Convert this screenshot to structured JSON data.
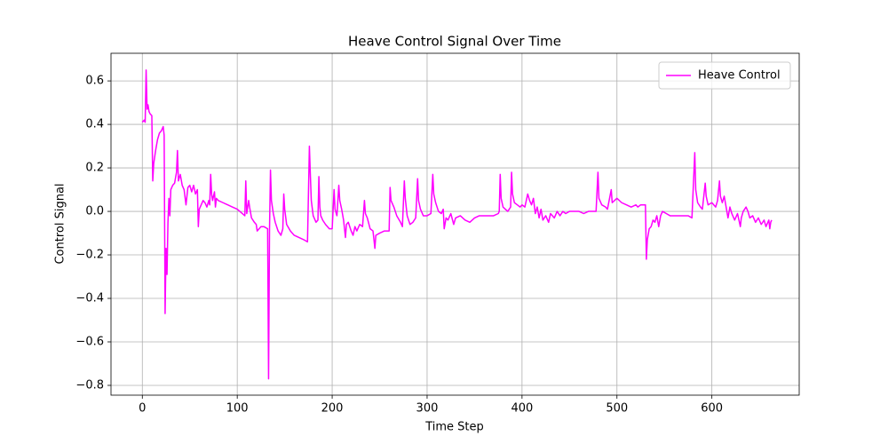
{
  "chart_data": {
    "type": "line",
    "title": "Heave Control Signal Over Time",
    "x_label": "Time Step",
    "y_label": "Control Signal",
    "x": [
      0,
      2,
      3,
      4,
      5,
      6,
      7,
      8,
      10,
      11,
      12,
      14,
      16,
      18,
      20,
      22,
      23,
      24,
      25,
      26,
      27,
      28,
      29,
      30,
      32,
      34,
      36,
      37,
      38,
      40,
      42,
      44,
      46,
      48,
      50,
      52,
      54,
      56,
      58,
      59,
      60,
      62,
      64,
      66,
      68,
      70,
      71,
      72,
      73,
      74,
      76,
      77,
      78,
      80,
      85,
      90,
      95,
      100,
      108,
      109,
      110,
      112,
      113,
      115,
      118,
      120,
      121,
      123,
      125,
      128,
      132,
      133,
      134,
      135,
      136,
      138,
      140,
      143,
      146,
      148,
      149,
      150,
      152,
      156,
      160,
      165,
      170,
      174,
      176,
      177,
      178,
      180,
      183,
      185,
      186,
      187,
      188,
      190,
      193,
      197,
      200,
      202,
      203,
      205,
      207,
      208,
      210,
      212,
      214,
      215,
      217,
      220,
      222,
      224,
      226,
      229,
      232,
      234,
      235,
      237,
      240,
      243,
      245,
      246,
      250,
      255,
      260,
      261,
      262,
      265,
      268,
      272,
      274,
      276,
      277,
      279,
      282,
      285,
      288,
      290,
      291,
      293,
      296,
      300,
      304,
      306,
      307,
      309,
      312,
      315,
      317,
      318,
      320,
      322,
      325,
      328,
      330,
      335,
      340,
      345,
      350,
      355,
      360,
      365,
      370,
      375,
      376,
      377,
      378,
      380,
      385,
      388,
      389,
      390,
      392,
      395,
      398,
      400,
      403,
      406,
      408,
      410,
      412,
      414,
      416,
      418,
      420,
      422,
      425,
      428,
      430,
      434,
      437,
      440,
      443,
      446,
      450,
      455,
      460,
      465,
      470,
      474,
      478,
      480,
      481,
      484,
      488,
      490,
      494,
      495,
      500,
      505,
      510,
      515,
      520,
      522,
      525,
      530,
      531,
      532,
      534,
      536,
      538,
      540,
      542,
      544,
      546,
      548,
      552,
      556,
      560,
      565,
      570,
      575,
      579,
      582,
      583,
      585,
      588,
      590,
      593,
      594,
      596,
      600,
      604,
      606,
      608,
      609,
      611,
      613,
      615,
      617,
      619,
      621,
      624,
      627,
      630,
      631,
      633,
      636,
      638,
      640,
      643,
      646,
      649,
      652,
      655,
      657,
      660,
      661,
      662,
      663
    ],
    "series": [
      {
        "name": "Heave Control",
        "color": "#ff00ff",
        "values": [
          0.41,
          0.42,
          0.41,
          0.65,
          0.47,
          0.49,
          0.46,
          0.45,
          0.44,
          0.14,
          0.22,
          0.28,
          0.33,
          0.36,
          0.37,
          0.39,
          0.35,
          -0.47,
          -0.17,
          -0.29,
          -0.05,
          0.06,
          -0.02,
          0.1,
          0.12,
          0.13,
          0.18,
          0.28,
          0.14,
          0.17,
          0.12,
          0.1,
          0.03,
          0.11,
          0.12,
          0.09,
          0.12,
          0.08,
          0.1,
          -0.07,
          0.01,
          0.03,
          0.05,
          0.04,
          0.02,
          0.05,
          0.03,
          0.17,
          0.08,
          0.05,
          0.09,
          0.02,
          0.06,
          0.05,
          0.04,
          0.03,
          0.02,
          0.01,
          -0.02,
          0.14,
          -0.01,
          0.05,
          0.02,
          -0.03,
          -0.05,
          -0.06,
          -0.09,
          -0.08,
          -0.07,
          -0.07,
          -0.08,
          -0.77,
          -0.08,
          0.19,
          0.05,
          -0.01,
          -0.05,
          -0.09,
          -0.11,
          -0.08,
          0.08,
          0.01,
          -0.06,
          -0.09,
          -0.11,
          -0.12,
          -0.13,
          -0.14,
          0.3,
          0.17,
          0.05,
          -0.02,
          -0.05,
          -0.04,
          0.16,
          0.02,
          -0.02,
          -0.04,
          -0.06,
          -0.08,
          -0.08,
          0.1,
          0.01,
          -0.02,
          0.12,
          0.05,
          0.01,
          -0.04,
          -0.12,
          -0.06,
          -0.05,
          -0.09,
          -0.11,
          -0.07,
          -0.09,
          -0.06,
          -0.07,
          0.05,
          -0.01,
          -0.03,
          -0.08,
          -0.09,
          -0.17,
          -0.11,
          -0.1,
          -0.09,
          -0.09,
          0.11,
          0.05,
          0.02,
          -0.02,
          -0.05,
          -0.07,
          0.14,
          0.06,
          -0.02,
          -0.06,
          -0.05,
          -0.03,
          0.15,
          0.05,
          0.01,
          -0.02,
          -0.02,
          -0.01,
          0.17,
          0.08,
          0.04,
          0.0,
          -0.01,
          0.01,
          -0.08,
          -0.03,
          -0.04,
          -0.01,
          -0.06,
          -0.03,
          -0.02,
          -0.04,
          -0.05,
          -0.03,
          -0.02,
          -0.02,
          -0.02,
          -0.02,
          -0.01,
          0.0,
          0.17,
          0.06,
          0.02,
          0.0,
          0.02,
          0.18,
          0.08,
          0.04,
          0.03,
          0.02,
          0.03,
          0.02,
          0.08,
          0.05,
          0.03,
          0.06,
          -0.01,
          0.02,
          -0.03,
          0.01,
          -0.04,
          -0.02,
          -0.05,
          -0.01,
          -0.03,
          0.0,
          -0.02,
          0.0,
          -0.01,
          0.0,
          0.0,
          0.0,
          -0.01,
          0.0,
          0.0,
          0.0,
          0.18,
          0.06,
          0.03,
          0.02,
          0.01,
          0.1,
          0.04,
          0.06,
          0.04,
          0.03,
          0.02,
          0.03,
          0.02,
          0.03,
          0.03,
          -0.22,
          -0.13,
          -0.08,
          -0.07,
          -0.04,
          -0.05,
          -0.02,
          -0.07,
          -0.02,
          0.0,
          -0.01,
          -0.02,
          -0.02,
          -0.02,
          -0.02,
          -0.02,
          -0.03,
          0.27,
          0.1,
          0.04,
          0.02,
          0.01,
          0.13,
          0.07,
          0.03,
          0.04,
          0.02,
          0.05,
          0.14,
          0.07,
          0.04,
          0.07,
          0.02,
          -0.03,
          0.02,
          -0.01,
          -0.04,
          -0.01,
          -0.07,
          -0.03,
          0.0,
          0.02,
          0.0,
          -0.03,
          -0.02,
          -0.05,
          -0.03,
          -0.06,
          -0.04,
          -0.07,
          -0.04,
          -0.08,
          -0.05,
          -0.04
        ]
      }
    ],
    "xlim": [
      -33,
      692
    ],
    "ylim": [
      -0.845,
      0.727
    ],
    "xticks": [
      0,
      100,
      200,
      300,
      400,
      500,
      600
    ],
    "yticks": [
      {
        "value": -0.8,
        "label": "−0.8"
      },
      {
        "value": -0.6,
        "label": "−0.6"
      },
      {
        "value": -0.4,
        "label": "−0.4"
      },
      {
        "value": -0.2,
        "label": "−0.2"
      },
      {
        "value": 0.0,
        "label": "0.0"
      },
      0.2,
      0.4,
      0.6
    ],
    "grid": true,
    "legend": "upper right"
  }
}
